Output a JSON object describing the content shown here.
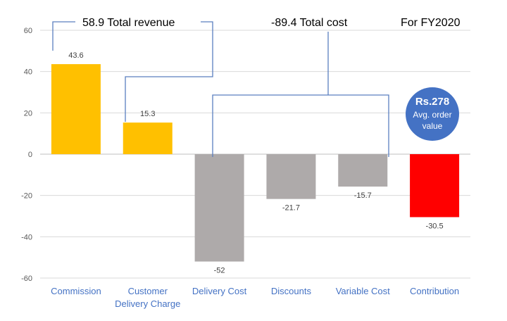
{
  "chart_data": {
    "type": "bar",
    "title": "For FY2020",
    "categories": [
      [
        "Commission"
      ],
      [
        "Customer",
        "Delivery Charge"
      ],
      [
        "Delivery Cost"
      ],
      [
        "Discounts"
      ],
      [
        "Variable Cost"
      ],
      [
        "Contribution"
      ]
    ],
    "values": [
      43.6,
      15.3,
      -52,
      -21.7,
      -15.7,
      -30.5
    ],
    "data_labels": [
      "43.6",
      "15.3",
      "-52",
      "-21.7",
      "-15.7",
      "-30.5"
    ],
    "ylim": [
      -60,
      60
    ],
    "yticks": [
      60,
      40,
      20,
      0,
      -20,
      -40,
      -60
    ],
    "grid": true,
    "xlabel": "",
    "ylabel": "",
    "annotations": {
      "revenue": "58.9 Total revenue",
      "cost": "-89.4 Total cost",
      "fiscal_year": "For FY2020"
    },
    "badge": {
      "amount": "Rs.278",
      "line1": "Avg. order",
      "line2": "value"
    }
  },
  "colors": {
    "revenue": "#ffc000",
    "cost": "#aeaaaa",
    "contribution": "#ff0000",
    "badge": "#4472c4",
    "bracket": "#5b7fbf",
    "grid": "#d9d9d9",
    "category_text": "#4472c4"
  }
}
